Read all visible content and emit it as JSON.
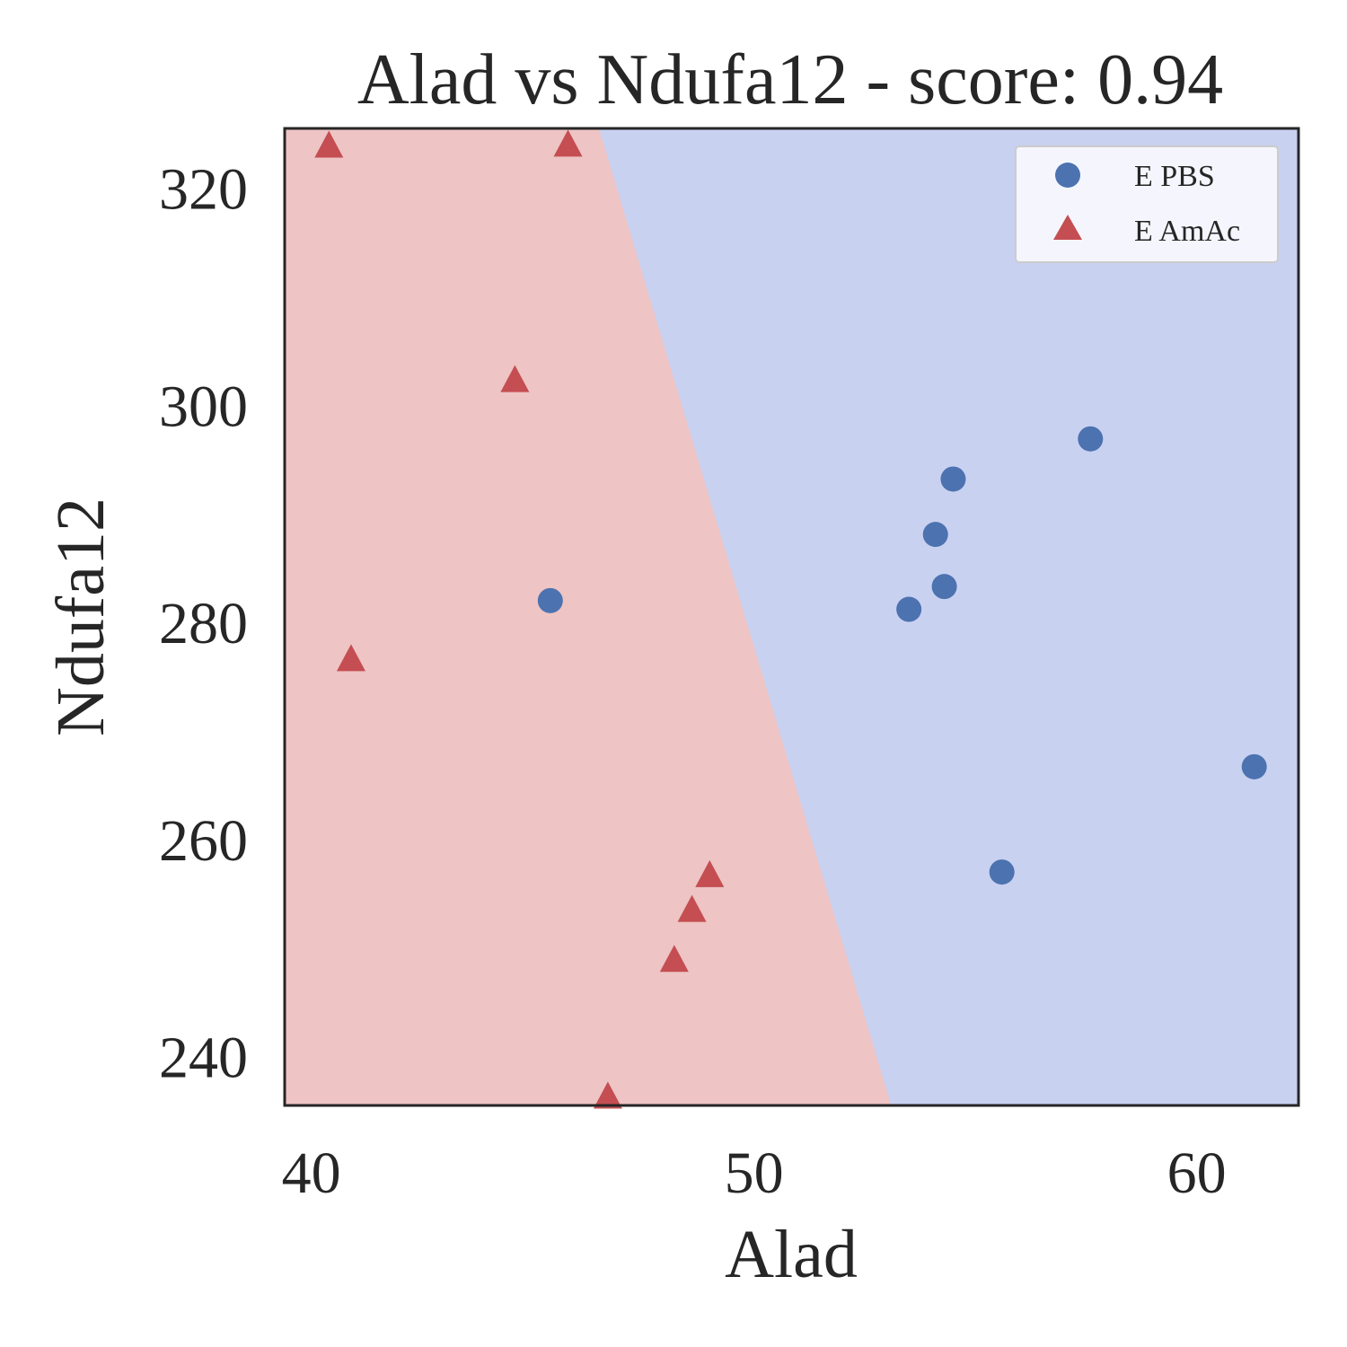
{
  "chart_data": {
    "type": "scatter",
    "title": "Alad vs Ndufa12 - score: 0.94",
    "xlabel": "Alad",
    "ylabel": "Ndufa12",
    "xlim": [
      39.4,
      62.3
    ],
    "ylim": [
      235.5,
      325.5
    ],
    "xticks": [
      40,
      50,
      60
    ],
    "yticks": [
      240,
      260,
      280,
      300,
      320
    ],
    "xtick_labels": [
      "40",
      "50",
      "60"
    ],
    "ytick_labels": [
      "240",
      "260",
      "280",
      "300",
      "320"
    ],
    "grid": false,
    "legend_position": "top-right",
    "decision_boundary": {
      "points": [
        [
          46.5,
          325.5
        ],
        [
          53.1,
          235.5
        ]
      ],
      "left_region_color": "#eec4c4",
      "right_region_color": "#c9d1f1"
    },
    "series": [
      {
        "name": "E PBS",
        "marker": "circle",
        "color": "#4c72b0",
        "points": [
          [
            45.4,
            282.0
          ],
          [
            53.5,
            281.2
          ],
          [
            54.1,
            288.1
          ],
          [
            54.3,
            283.3
          ],
          [
            54.5,
            293.2
          ],
          [
            55.6,
            257.0
          ],
          [
            57.6,
            296.9
          ],
          [
            61.3,
            266.7
          ]
        ]
      },
      {
        "name": "E AmAc",
        "marker": "triangle",
        "color": "#c44e52",
        "points": [
          [
            40.4,
            323.8
          ],
          [
            40.9,
            276.5
          ],
          [
            44.6,
            302.2
          ],
          [
            45.8,
            323.9
          ],
          [
            46.7,
            236.2
          ],
          [
            48.2,
            248.8
          ],
          [
            48.6,
            253.4
          ],
          [
            49.0,
            256.6
          ]
        ]
      }
    ]
  }
}
